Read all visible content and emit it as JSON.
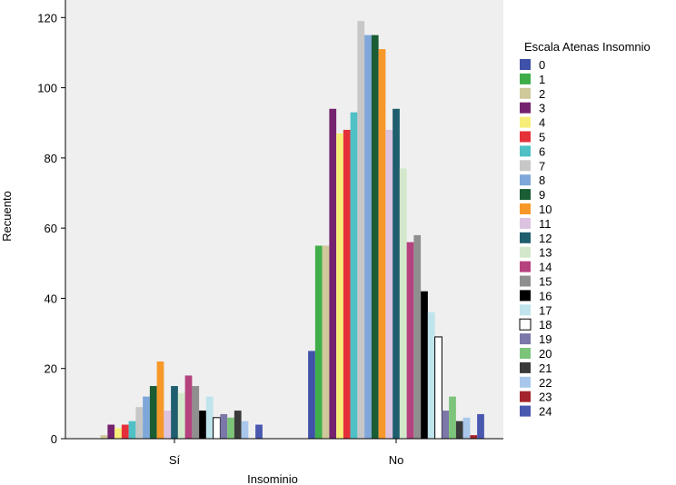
{
  "chart_data": {
    "type": "bar",
    "title": "",
    "xlabel": "Insominio",
    "ylabel": "Recuento",
    "ylim": [
      0,
      125
    ],
    "yticks": [
      0,
      20,
      40,
      60,
      80,
      100,
      120
    ],
    "categories": [
      "Sí",
      "No"
    ],
    "legend_title": "Escala Atenas Insomnio",
    "legend_position": "right",
    "grid": false,
    "series": [
      {
        "name": "0",
        "color": "#3f51a8",
        "values": [
          0,
          25
        ]
      },
      {
        "name": "1",
        "color": "#3fae4a",
        "values": [
          0,
          55
        ]
      },
      {
        "name": "2",
        "color": "#cfc89a",
        "values": [
          1,
          55
        ]
      },
      {
        "name": "3",
        "color": "#75236f",
        "values": [
          4,
          94
        ]
      },
      {
        "name": "4",
        "color": "#f6ee79",
        "values": [
          3,
          87
        ]
      },
      {
        "name": "5",
        "color": "#e5303a",
        "values": [
          4,
          88
        ]
      },
      {
        "name": "6",
        "color": "#4fc0c4",
        "values": [
          5,
          93
        ]
      },
      {
        "name": "7",
        "color": "#c7c7c7",
        "values": [
          9,
          119
        ]
      },
      {
        "name": "8",
        "color": "#7fa7d9",
        "values": [
          12,
          115
        ]
      },
      {
        "name": "9",
        "color": "#1a5c34",
        "values": [
          15,
          115
        ]
      },
      {
        "name": "10",
        "color": "#f7982a",
        "values": [
          22,
          111
        ]
      },
      {
        "name": "11",
        "color": "#dcc4e0",
        "values": [
          8,
          88
        ]
      },
      {
        "name": "12",
        "color": "#1f5e6e",
        "values": [
          15,
          94
        ]
      },
      {
        "name": "13",
        "color": "#d3e8cb",
        "values": [
          13,
          77
        ]
      },
      {
        "name": "14",
        "color": "#b5427f",
        "values": [
          18,
          56
        ]
      },
      {
        "name": "15",
        "color": "#8f8f8f",
        "values": [
          15,
          58
        ]
      },
      {
        "name": "16",
        "color": "#000000",
        "values": [
          8,
          42
        ]
      },
      {
        "name": "17",
        "color": "#bfe4ec",
        "values": [
          12,
          36
        ]
      },
      {
        "name": "18",
        "color": "#ffffff",
        "values": [
          6,
          29
        ]
      },
      {
        "name": "19",
        "color": "#7b77a8",
        "values": [
          7,
          8
        ]
      },
      {
        "name": "20",
        "color": "#7cc47a",
        "values": [
          6,
          12
        ]
      },
      {
        "name": "21",
        "color": "#3a3a3a",
        "values": [
          8,
          5
        ]
      },
      {
        "name": "22",
        "color": "#a9c7ea",
        "values": [
          5,
          6
        ]
      },
      {
        "name": "23",
        "color": "#a3242c",
        "values": [
          0,
          1
        ]
      },
      {
        "name": "24",
        "color": "#4a58b0",
        "values": [
          4,
          7
        ]
      }
    ]
  }
}
